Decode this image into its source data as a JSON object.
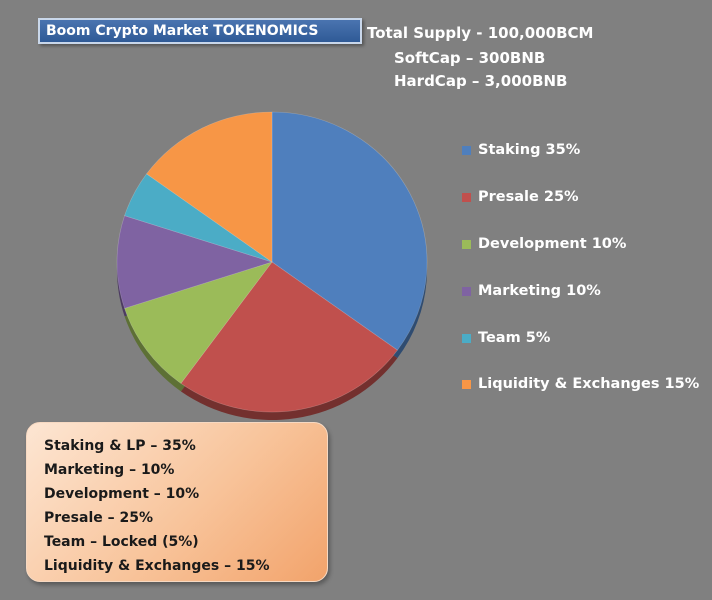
{
  "header": {
    "title": "Boom Crypto Market TOKENOMICS",
    "total_supply": "Total Supply - 100,000BCM",
    "softcap": "SoftCap – 300BNB",
    "hardcap": "HardCap – 3,000BNB"
  },
  "chart_data": {
    "type": "pie",
    "title": "",
    "legend_position": "right",
    "slices": [
      {
        "label": "Staking 35%",
        "value": 35,
        "color": "#4f7fbd"
      },
      {
        "label": "Presale 25%",
        "value": 25,
        "color": "#c0504d"
      },
      {
        "label": "Development 10%",
        "value": 10,
        "color": "#9bbb59"
      },
      {
        "label": "Marketing 10%",
        "value": 10,
        "color": "#7f63a2"
      },
      {
        "label": "Team 5%",
        "value": 5,
        "color": "#4bacc6"
      },
      {
        "label": "Liquidity & Exchanges 15%",
        "value": 15,
        "color": "#f79646"
      }
    ]
  },
  "summary": {
    "lines": [
      "Staking & LP – 35%",
      "Marketing – 10%",
      "Development – 10%",
      "Presale – 25%",
      "Team – Locked (5%)",
      "Liquidity & Exchanges – 15%"
    ]
  }
}
